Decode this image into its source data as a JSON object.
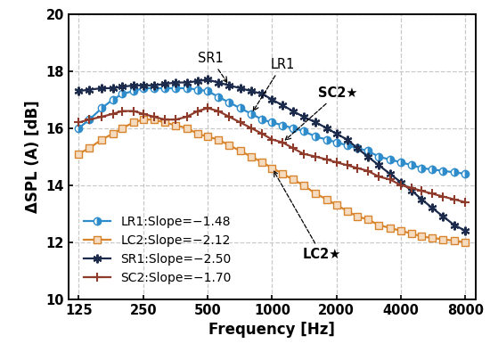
{
  "chart_data": {
    "type": "line",
    "xlabel": "Frequency [Hz]",
    "ylabel": "ΔSPL (A) [dB]",
    "log": "x",
    "grid": true,
    "legend": "lower left",
    "x": [
      125,
      140,
      160,
      180,
      200,
      225,
      250,
      280,
      315,
      355,
      400,
      450,
      500,
      560,
      630,
      710,
      800,
      900,
      1000,
      1120,
      1250,
      1400,
      1600,
      1800,
      2000,
      2240,
      2500,
      2800,
      3150,
      3550,
      4000,
      4500,
      5000,
      5600,
      6300,
      7100,
      8000
    ],
    "xlim": [
      112,
      8900
    ],
    "xticks": [
      125,
      250,
      500,
      1000,
      2000,
      4000,
      8000
    ],
    "ylim": [
      10,
      20
    ],
    "yticks": [
      10,
      12,
      14,
      16,
      18,
      20
    ],
    "series": [
      {
        "name": "LR1:Slope=−1.48",
        "color": "#2f8ccb",
        "marker": "circle",
        "line_style": "solid",
        "values": [
          16.0,
          16.3,
          16.7,
          17.0,
          17.2,
          17.3,
          17.4,
          17.4,
          17.4,
          17.4,
          17.4,
          17.35,
          17.3,
          17.1,
          16.9,
          16.7,
          16.5,
          16.3,
          16.2,
          16.1,
          16.0,
          15.9,
          15.7,
          15.6,
          15.5,
          15.4,
          15.3,
          15.2,
          15.0,
          14.9,
          14.8,
          14.7,
          14.6,
          14.55,
          14.5,
          14.45,
          14.4
        ]
      },
      {
        "name": "LC2:Slope=−2.12",
        "color": "#d8842c",
        "marker": "square",
        "line_style": "solid",
        "values": [
          15.1,
          15.3,
          15.6,
          15.8,
          16.0,
          16.2,
          16.3,
          16.3,
          16.2,
          16.1,
          16.0,
          15.8,
          15.7,
          15.6,
          15.4,
          15.2,
          15.0,
          14.8,
          14.6,
          14.4,
          14.2,
          14.0,
          13.7,
          13.5,
          13.3,
          13.1,
          12.9,
          12.8,
          12.6,
          12.5,
          12.4,
          12.3,
          12.2,
          12.15,
          12.1,
          12.05,
          12.0
        ]
      },
      {
        "name": "SR1:Slope=−2.50",
        "color": "#1c2b4c",
        "marker": "asterisk",
        "line_style": "solid",
        "values": [
          17.3,
          17.35,
          17.4,
          17.4,
          17.45,
          17.5,
          17.5,
          17.5,
          17.55,
          17.6,
          17.6,
          17.65,
          17.7,
          17.6,
          17.5,
          17.4,
          17.3,
          17.2,
          17.0,
          16.8,
          16.6,
          16.4,
          16.2,
          16.0,
          15.8,
          15.6,
          15.3,
          15.0,
          14.7,
          14.4,
          14.1,
          13.8,
          13.5,
          13.2,
          12.9,
          12.6,
          12.4
        ]
      },
      {
        "name": "SC2:Slope=−1.70",
        "color": "#8e3b2b",
        "marker": "plus",
        "line_style": "solid",
        "values": [
          16.2,
          16.3,
          16.4,
          16.5,
          16.6,
          16.6,
          16.5,
          16.4,
          16.3,
          16.3,
          16.4,
          16.6,
          16.7,
          16.6,
          16.4,
          16.2,
          16.0,
          15.8,
          15.6,
          15.5,
          15.3,
          15.1,
          15.0,
          14.9,
          14.8,
          14.7,
          14.6,
          14.5,
          14.3,
          14.2,
          14.0,
          13.9,
          13.8,
          13.7,
          13.6,
          13.5,
          13.4
        ]
      }
    ],
    "annotations": [
      {
        "text": "SR1",
        "x": 630,
        "y": 17.5
      },
      {
        "text": "LR1",
        "x": 800,
        "y": 16.5
      },
      {
        "text": "SC2★",
        "x": 1120,
        "y": 15.5
      },
      {
        "text": "LC2★",
        "x": 1000,
        "y": 14.6
      }
    ]
  }
}
